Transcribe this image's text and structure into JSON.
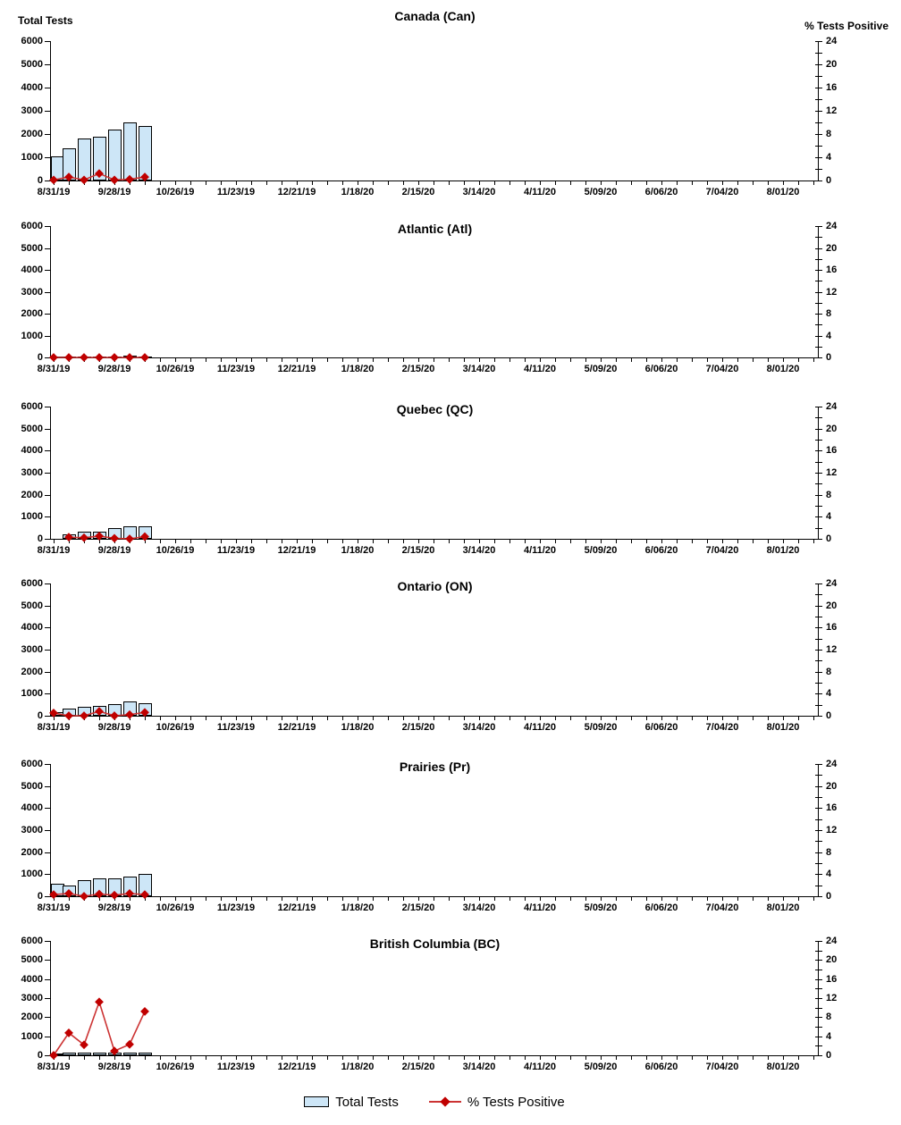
{
  "header": {
    "left_axis_title": "Total Tests",
    "right_axis_title": "% Tests Positive"
  },
  "legend": {
    "bar_label": "Total Tests",
    "line_label": "% Tests Positive"
  },
  "chart_data": {
    "type": "bar",
    "subtype": "combo bar + line, small multiples (6 stacked panels)",
    "x_axis": {
      "tick_label_dates": [
        "8/31/19",
        "9/28/19",
        "10/26/19",
        "11/23/19",
        "12/21/19",
        "1/18/20",
        "2/15/20",
        "3/14/20",
        "4/11/20",
        "5/09/20",
        "6/06/20",
        "7/04/20",
        "8/01/20"
      ],
      "minor_tick_interval": "1 week",
      "label_interval": "4 weeks",
      "weeks_shown": 51
    },
    "left_axis": {
      "title": "Total Tests",
      "min": 0,
      "max": 6000,
      "tick_step": 1000
    },
    "right_axis": {
      "title": "% Tests Positive",
      "min": 0,
      "max": 24,
      "label_step": 4,
      "minor_tick_step": 2
    },
    "series_names": [
      "Total Tests",
      "% Tests Positive"
    ],
    "data_week_dates": [
      "8/31/19",
      "9/07/19",
      "9/14/19",
      "9/21/19",
      "9/28/19",
      "10/05/19",
      "10/12/19"
    ],
    "charts": [
      {
        "title": "Canada (Can)",
        "start_week_index": 0,
        "total_tests": [
          1050,
          1400,
          1800,
          1900,
          2200,
          2500,
          2350
        ],
        "pct_positive": [
          0.1,
          0.6,
          0.1,
          1.2,
          0.1,
          0.2,
          0.6
        ]
      },
      {
        "title": "Atlantic (Atl)",
        "start_week_index": 0,
        "total_tests": [
          40,
          50,
          60,
          60,
          60,
          100,
          60
        ],
        "pct_positive": [
          0,
          0,
          0,
          0,
          0,
          0,
          0
        ]
      },
      {
        "title": "Quebec (QC)",
        "start_week_index": 1,
        "total_tests": [
          220,
          340,
          310,
          480,
          560,
          560
        ],
        "pct_positive": [
          0.3,
          0.2,
          0.5,
          0.1,
          0,
          0.4
        ]
      },
      {
        "title": "Ontario (ON)",
        "start_week_index": 0,
        "total_tests": [
          150,
          320,
          390,
          430,
          530,
          650,
          570
        ],
        "pct_positive": [
          0.5,
          0,
          0,
          0.8,
          0,
          0.2,
          0.6
        ]
      },
      {
        "title": "Prairies (Pr)",
        "start_week_index": 0,
        "total_tests": [
          570,
          490,
          730,
          800,
          820,
          900,
          1000
        ],
        "pct_positive": [
          0.3,
          0.5,
          0,
          0.4,
          0.2,
          0.5,
          0.3
        ]
      },
      {
        "title": "British Columbia (BC)",
        "start_week_index": 0,
        "total_tests": [
          110,
          120,
          130,
          140,
          130,
          150,
          130
        ],
        "pct_positive": [
          0,
          4.7,
          2.2,
          11.2,
          0.9,
          2.3,
          9.2
        ]
      }
    ],
    "colors": {
      "bar_fill": "#CDE6F7",
      "bar_border": "#000000",
      "line": "#CC3333",
      "marker": "#C00000",
      "text": "#000000"
    }
  }
}
